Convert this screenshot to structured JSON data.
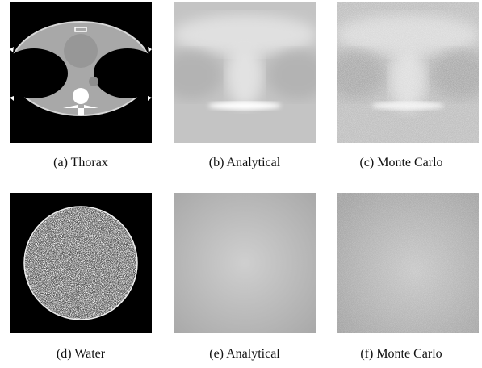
{
  "figure": {
    "panels": [
      {
        "caption": "(a) Thorax"
      },
      {
        "caption": "(b) Analytical"
      },
      {
        "caption": "(c) Monte Carlo"
      },
      {
        "caption": "(d) Water"
      },
      {
        "caption": "(e) Analytical"
      },
      {
        "caption": "(f) Monte Carlo"
      }
    ]
  }
}
